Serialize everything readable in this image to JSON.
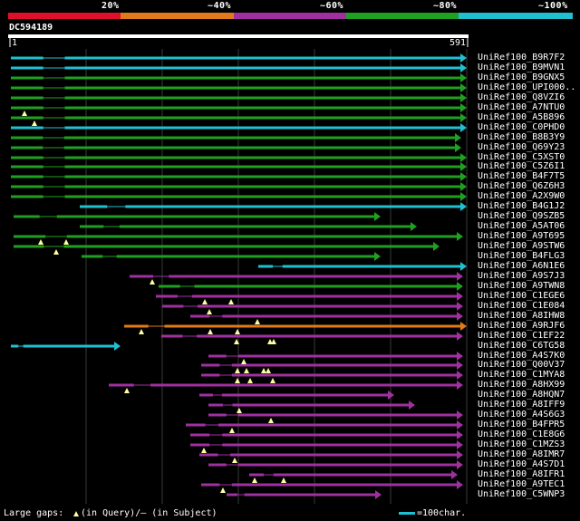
{
  "scale": {
    "labels": [
      "20%",
      "~40%",
      "~60%",
      "~80%",
      "~100%"
    ],
    "colors": [
      "#e0102a",
      "#e07a1a",
      "#a030a0",
      "#20a020",
      "#20c0d0"
    ]
  },
  "query": {
    "id": "DC594189",
    "start": "1",
    "end": "591"
  },
  "hits": [
    {
      "label": "UniRef100_B9R7F2",
      "color": "#20c0d0"
    },
    {
      "label": "UniRef100_B9MVN1",
      "color": "#20c0d0"
    },
    {
      "label": "UniRef100_B9GNX5",
      "color": "#20a020"
    },
    {
      "label": "UniRef100_UPI000..",
      "color": "#20a020"
    },
    {
      "label": "UniRef100_Q8VZI6",
      "color": "#20a020"
    },
    {
      "label": "UniRef100_A7NTU0",
      "color": "#20a020"
    },
    {
      "label": "UniRef100_A5B896",
      "color": "#20a020"
    },
    {
      "label": "UniRef100_C0PHD0",
      "color": "#20c0d0"
    },
    {
      "label": "UniRef100_B8B3Y9",
      "color": "#20a020"
    },
    {
      "label": "UniRef100_Q69Y23",
      "color": "#20a020"
    },
    {
      "label": "UniRef100_C5XST0",
      "color": "#20a020"
    },
    {
      "label": "UniRef100_C5Z6I1",
      "color": "#20a020"
    },
    {
      "label": "UniRef100_B4F7T5",
      "color": "#20a020"
    },
    {
      "label": "UniRef100_Q6Z6H3",
      "color": "#20a020"
    },
    {
      "label": "UniRef100_A2X9W0",
      "color": "#20a020"
    },
    {
      "label": "UniRef100_B4G1J2",
      "color": "#20c0d0"
    },
    {
      "label": "UniRef100_Q9SZB5",
      "color": "#20a020"
    },
    {
      "label": "UniRef100_A5AT06",
      "color": "#20a020"
    },
    {
      "label": "UniRef100_A9T695",
      "color": "#20a020"
    },
    {
      "label": "UniRef100_A9STW6",
      "color": "#20a020"
    },
    {
      "label": "UniRef100_B4FLG3",
      "color": "#20a020"
    },
    {
      "label": "UniRef100_A6N1E6",
      "color": "#20c0d0"
    },
    {
      "label": "UniRef100_A9S7J3",
      "color": "#a030a0"
    },
    {
      "label": "UniRef100_A9TWN8",
      "color": "#20a020"
    },
    {
      "label": "UniRef100_C1EGE6",
      "color": "#a030a0"
    },
    {
      "label": "UniRef100_C1E084",
      "color": "#a030a0"
    },
    {
      "label": "UniRef100_A8IHW8",
      "color": "#a030a0"
    },
    {
      "label": "UniRef100_A9RJF6",
      "color": "#e07a1a"
    },
    {
      "label": "UniRef100_C1EF22",
      "color": "#a030a0"
    },
    {
      "label": "UniRef100_C6TG58",
      "color": "#20c0d0"
    },
    {
      "label": "UniRef100_A4S7K0",
      "color": "#a030a0"
    },
    {
      "label": "UniRef100_Q00V37",
      "color": "#a030a0"
    },
    {
      "label": "UniRef100_C1MYA8",
      "color": "#a030a0"
    },
    {
      "label": "UniRef100_A8HX99",
      "color": "#a030a0"
    },
    {
      "label": "UniRef100_A8HQN7",
      "color": "#a030a0"
    },
    {
      "label": "UniRef100_A8IFF9",
      "color": "#a030a0"
    },
    {
      "label": "UniRef100_A4S6G3",
      "color": "#a030a0"
    },
    {
      "label": "UniRef100_B4FPR5",
      "color": "#a030a0"
    },
    {
      "label": "UniRef100_C1E8G6",
      "color": "#a030a0"
    },
    {
      "label": "UniRef100_C1MZS3",
      "color": "#a030a0"
    },
    {
      "label": "UniRef100_A8IMR7",
      "color": "#a030a0"
    },
    {
      "label": "UniRef100_A4S7D1",
      "color": "#a030a0"
    },
    {
      "label": "UniRef100_A8IFR1",
      "color": "#a030a0"
    },
    {
      "label": "UniRef100_A9TEC1",
      "color": "#a030a0"
    },
    {
      "label": "UniRef100_C5WNP3",
      "color": "#a030a0"
    }
  ],
  "legend": {
    "text": "Large gaps:",
    "query_gap": "(in Query)/– (in Subject)",
    "scale_text": "=100char.",
    "scale_color": "#20c0d0"
  }
}
